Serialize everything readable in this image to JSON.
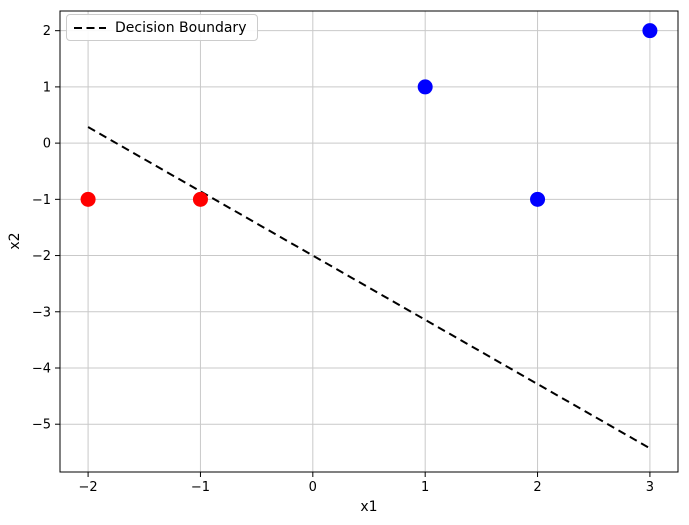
{
  "figure": {
    "background": "#ffffff"
  },
  "chart_data": {
    "type": "scatter",
    "title": "",
    "xlabel": "x1",
    "ylabel": "x2",
    "xlim": [
      -2.25,
      3.25
    ],
    "ylim": [
      -5.85,
      2.35
    ],
    "grid": true,
    "grid_color": "#c9c9c9",
    "axes_color": "#000000",
    "x_tick_values": [
      -2,
      -1,
      0,
      1,
      2,
      3
    ],
    "x_tick_labels": [
      "−2",
      "−1",
      "0",
      "1",
      "2",
      "3"
    ],
    "y_tick_values": [
      2,
      1,
      0,
      -1,
      -2,
      -3,
      -4,
      -5
    ],
    "y_tick_labels": [
      "2",
      "1",
      "0",
      "−1",
      "−2",
      "−3",
      "−4",
      "−5"
    ],
    "series": [
      {
        "name": "red-class-points",
        "kind": "scatter",
        "color": "#ff0000",
        "marker": "circle",
        "marker_radius": 7.5,
        "points": [
          [
            -2,
            -1
          ],
          [
            -1,
            -1
          ]
        ]
      },
      {
        "name": "blue-class-points",
        "kind": "scatter",
        "color": "#0000ff",
        "marker": "circle",
        "marker_radius": 7.5,
        "points": [
          [
            1,
            1
          ],
          [
            2,
            -1
          ],
          [
            3,
            2
          ]
        ]
      },
      {
        "name": "decision-boundary",
        "kind": "line",
        "color": "#000000",
        "line_style": "dashed",
        "line_width": 2,
        "points": [
          [
            -2,
            0.2857
          ],
          [
            3,
            -5.4286
          ]
        ]
      }
    ],
    "legend": {
      "position": "upper left",
      "entries": [
        {
          "label": "Decision Boundary",
          "line_style": "dashed",
          "color": "#000000"
        }
      ]
    }
  }
}
